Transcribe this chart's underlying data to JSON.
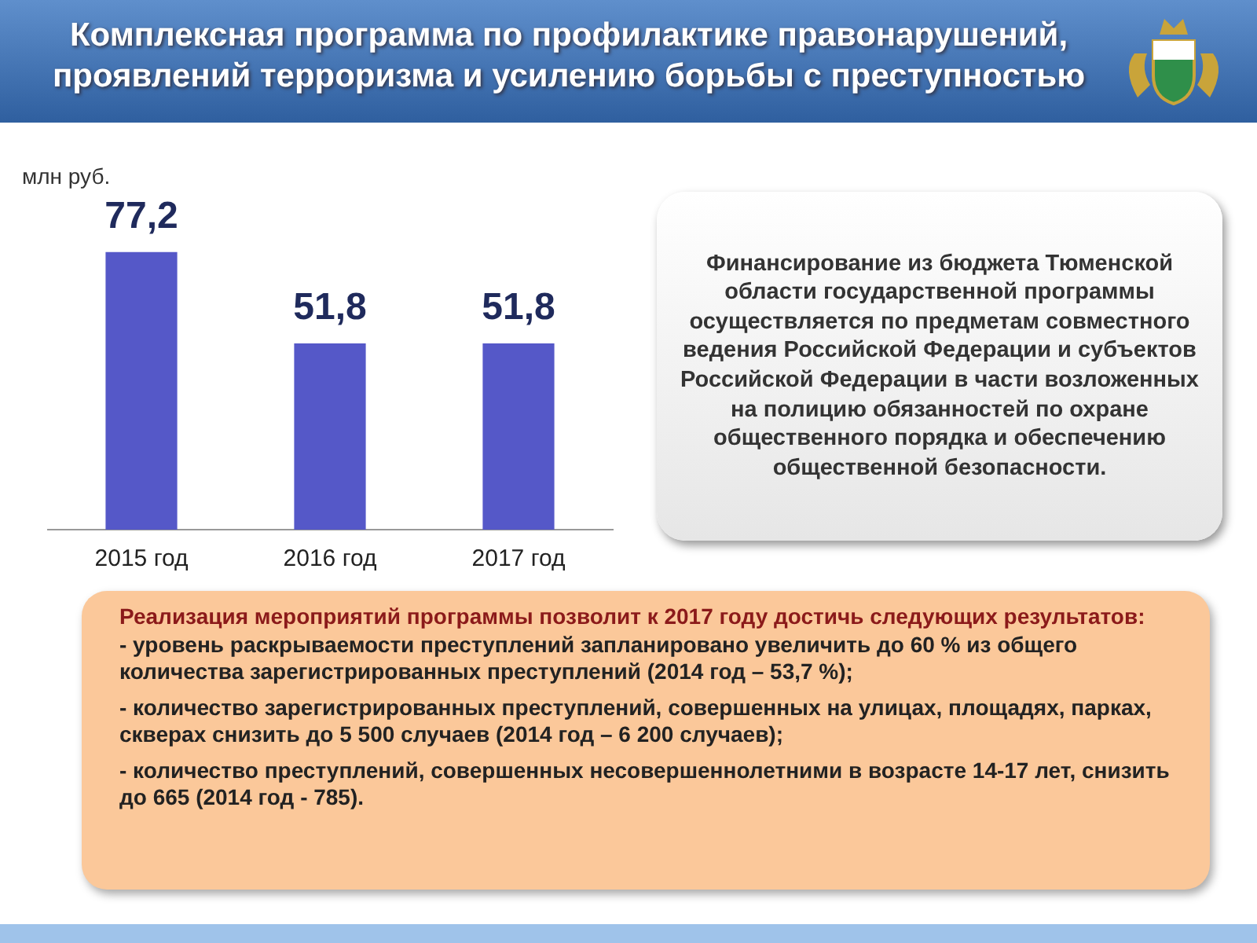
{
  "chart_data": {
    "type": "bar",
    "title": "Комплексная программа по профилактике правонарушений, проявлений терроризма и усилению борьбы с преступностью",
    "ylabel": "млн руб.",
    "categories": [
      "2015 год",
      "2016 год",
      "2017 год"
    ],
    "values": [
      77.2,
      51.8,
      51.8
    ],
    "value_labels": [
      "77,2",
      "51,8",
      "51,8"
    ],
    "color": "#5558c8",
    "tick_labels": "x",
    "grid": false,
    "legend": false,
    "annotations": [
      "Финансирование из бюджета Тюменской области государственной программы осуществляется по предметам совместного ведения Российской Федерации и субъектов Российской Федерации  в части возложенных на полицию обязанностей по охране общественного порядка и обеспечению общественной безопасности.",
      "Реализация мероприятий программы позволит к 2017 году достичь следующих результатов:",
      "- уровень раскрываемости преступлений запланировано увеличить до 60 % из общего количества зарегистрированных преступлений (2014 год – 53,7 %);",
      "- количество зарегистрированных преступлений, совершенных на улицах, площадях, парках, скверах снизить до 5 500 случаев (2014 год – 6 200 случаев);",
      "- количество преступлений, совершенных несовершеннолетними в возрасте 14-17 лет, снизить до 665 (2014 год - 785)."
    ]
  }
}
